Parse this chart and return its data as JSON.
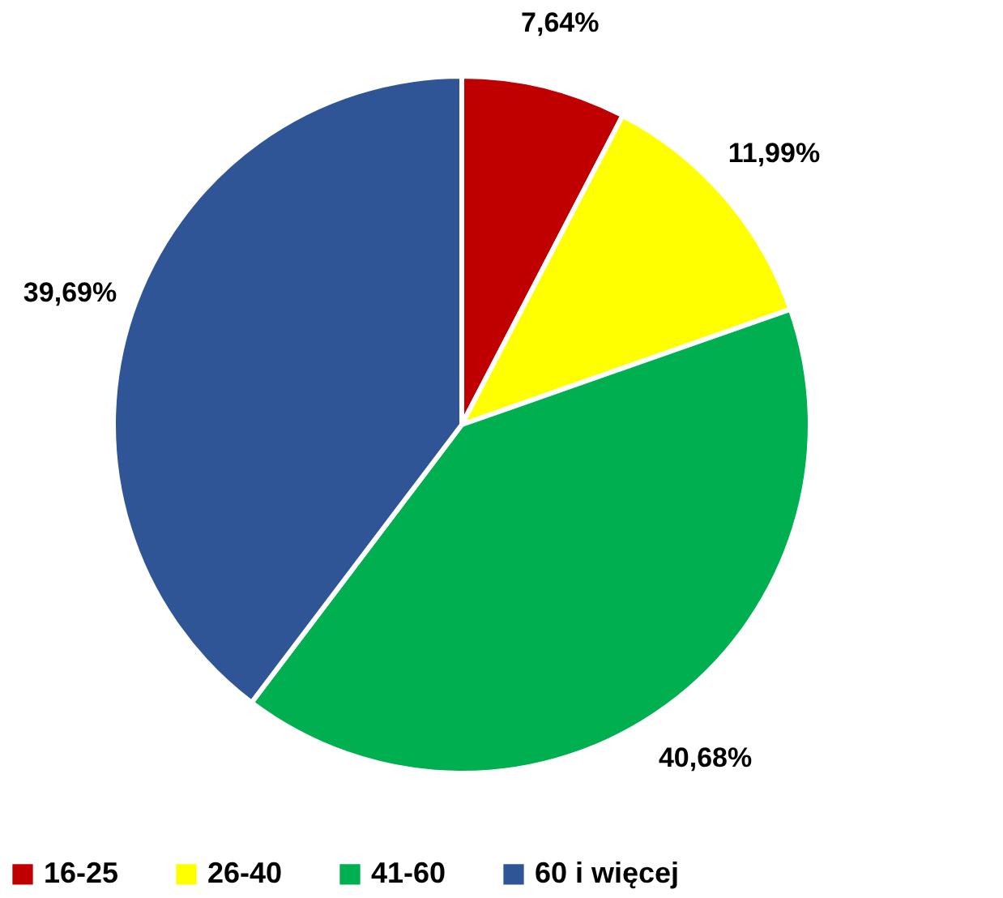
{
  "chart_data": {
    "type": "pie",
    "categories": [
      "16-25",
      "26-40",
      "41-60",
      "60 i więcej"
    ],
    "values": [
      7.64,
      11.99,
      40.68,
      39.69
    ],
    "colors": [
      "#c00000",
      "#ffff00",
      "#00b050",
      "#2f5597"
    ],
    "value_labels": [
      "7,64%",
      "11,99%",
      "40,68%",
      "39,69%"
    ],
    "legend": "bottom"
  }
}
